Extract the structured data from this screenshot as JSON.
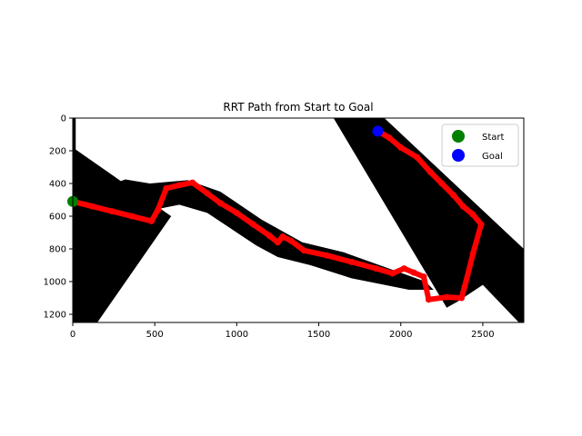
{
  "chart_data": {
    "type": "scatter",
    "title": "RRT Path from Start to Goal",
    "xlim": [
      0,
      2750
    ],
    "ylim_top_to_bottom": [
      0,
      1250
    ],
    "y_inverted": true,
    "x_ticks": [
      0,
      500,
      1000,
      1500,
      2000,
      2500
    ],
    "y_ticks": [
      0,
      200,
      400,
      600,
      800,
      1000,
      1200
    ],
    "legend_position": "top-right",
    "obstacles": [
      {
        "name": "lower-left-band",
        "color": "#000000",
        "points": [
          [
            0,
            180
          ],
          [
            0,
            1250
          ],
          [
            150,
            1250
          ],
          [
            600,
            600
          ],
          [
            0,
            180
          ]
        ]
      },
      {
        "name": "middle-band",
        "color": "#000000",
        "points": [
          [
            0,
            500
          ],
          [
            320,
            375
          ],
          [
            470,
            400
          ],
          [
            700,
            380
          ],
          [
            900,
            450
          ],
          [
            1150,
            620
          ],
          [
            1400,
            760
          ],
          [
            1650,
            820
          ],
          [
            2150,
            1000
          ],
          [
            2200,
            1050
          ],
          [
            2380,
            1050
          ],
          [
            2200,
            1050
          ],
          [
            2050,
            1050
          ],
          [
            1700,
            980
          ],
          [
            1450,
            900
          ],
          [
            1250,
            850
          ],
          [
            1120,
            780
          ],
          [
            820,
            580
          ],
          [
            650,
            530
          ],
          [
            500,
            560
          ],
          [
            0,
            520
          ]
        ]
      },
      {
        "name": "right-band",
        "color": "#000000",
        "points": [
          [
            1590,
            0
          ],
          [
            1900,
            0
          ],
          [
            2750,
            800
          ],
          [
            2750,
            1250
          ],
          [
            2720,
            1250
          ],
          [
            2500,
            1020
          ],
          [
            2350,
            1120
          ],
          [
            2280,
            1160
          ],
          [
            1590,
            0
          ]
        ]
      },
      {
        "name": "left-edge-bar",
        "color": "#000000",
        "points": [
          [
            0,
            0
          ],
          [
            18,
            0
          ],
          [
            18,
            1250
          ],
          [
            0,
            1250
          ]
        ]
      }
    ],
    "path": [
      [
        0,
        510
      ],
      [
        120,
        540
      ],
      [
        240,
        570
      ],
      [
        360,
        600
      ],
      [
        480,
        630
      ],
      [
        520,
        560
      ],
      [
        570,
        430
      ],
      [
        650,
        410
      ],
      [
        730,
        395
      ],
      [
        820,
        460
      ],
      [
        900,
        520
      ],
      [
        1000,
        580
      ],
      [
        1100,
        650
      ],
      [
        1200,
        720
      ],
      [
        1250,
        760
      ],
      [
        1280,
        725
      ],
      [
        1330,
        750
      ],
      [
        1410,
        810
      ],
      [
        1550,
        840
      ],
      [
        1700,
        880
      ],
      [
        1850,
        920
      ],
      [
        1950,
        950
      ],
      [
        2020,
        920
      ],
      [
        2080,
        945
      ],
      [
        2140,
        970
      ],
      [
        2170,
        1110
      ],
      [
        2280,
        1095
      ],
      [
        2370,
        1100
      ],
      [
        2390,
        1030
      ],
      [
        2440,
        830
      ],
      [
        2490,
        650
      ],
      [
        2440,
        590
      ],
      [
        2380,
        540
      ],
      [
        2320,
        470
      ],
      [
        2250,
        400
      ],
      [
        2180,
        330
      ],
      [
        2100,
        240
      ],
      [
        2000,
        180
      ],
      [
        1930,
        120
      ],
      [
        1860,
        80
      ]
    ],
    "series": [
      {
        "name": "Start",
        "color": "#008000",
        "x": [
          0
        ],
        "y": [
          510
        ]
      },
      {
        "name": "Goal",
        "color": "#0000ff",
        "x": [
          1860
        ],
        "y": [
          80
        ]
      }
    ],
    "path_color": "#ff0000"
  }
}
